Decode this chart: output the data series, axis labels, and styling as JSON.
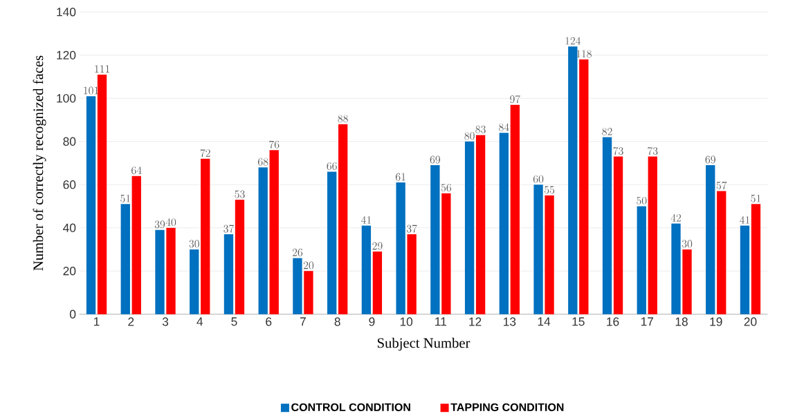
{
  "chart_data": {
    "type": "bar",
    "xlabel": "Subject Number",
    "ylabel": "Number of correctly recognized faces",
    "categories": [
      "1",
      "2",
      "3",
      "4",
      "5",
      "6",
      "7",
      "8",
      "9",
      "10",
      "11",
      "12",
      "13",
      "14",
      "15",
      "16",
      "17",
      "18",
      "19",
      "20"
    ],
    "series": [
      {
        "name": "CONTROL CONDITION",
        "color": "#0070c0",
        "values": [
          101,
          51,
          39,
          30,
          37,
          68,
          26,
          66,
          41,
          61,
          69,
          80,
          84,
          60,
          124,
          82,
          50,
          42,
          69,
          41
        ]
      },
      {
        "name": "TAPPING CONDITION",
        "color": "#ff0000",
        "values": [
          111,
          64,
          40,
          72,
          53,
          76,
          20,
          88,
          29,
          37,
          56,
          83,
          97,
          55,
          118,
          73,
          73,
          30,
          57,
          51
        ]
      }
    ],
    "ylim": [
      0,
      140
    ],
    "yticks": [
      0,
      20,
      40,
      60,
      80,
      100,
      120,
      140
    ],
    "grid": "y",
    "legend": "bottom",
    "data_labels": true
  }
}
